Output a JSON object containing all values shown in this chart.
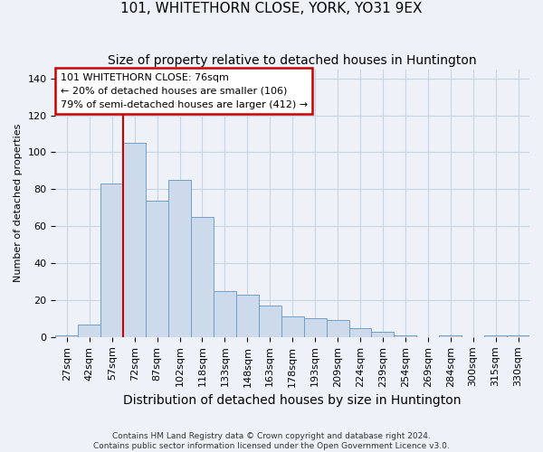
{
  "title": "101, WHITETHORN CLOSE, YORK, YO31 9EX",
  "subtitle": "Size of property relative to detached houses in Huntington",
  "xlabel": "Distribution of detached houses by size in Huntington",
  "ylabel": "Number of detached properties",
  "footnote1": "Contains HM Land Registry data © Crown copyright and database right 2024.",
  "footnote2": "Contains public sector information licensed under the Open Government Licence v3.0.",
  "categories": [
    "27sqm",
    "42sqm",
    "57sqm",
    "72sqm",
    "87sqm",
    "102sqm",
    "118sqm",
    "133sqm",
    "148sqm",
    "163sqm",
    "178sqm",
    "193sqm",
    "209sqm",
    "224sqm",
    "239sqm",
    "254sqm",
    "269sqm",
    "284sqm",
    "300sqm",
    "315sqm",
    "330sqm"
  ],
  "values": [
    1,
    7,
    83,
    105,
    74,
    85,
    65,
    25,
    23,
    17,
    11,
    10,
    9,
    5,
    3,
    1,
    0,
    1,
    0,
    1,
    1
  ],
  "bar_color": "#ccdaeb",
  "bar_edge_color": "#6fa0c8",
  "grid_color": "#c8d4e4",
  "background_color": "#eef2f8",
  "vline_color": "#cc0000",
  "vline_x_index": 3,
  "annotation_text": "101 WHITETHORN CLOSE: 76sqm\n← 20% of detached houses are smaller (106)\n79% of semi-detached houses are larger (412) →",
  "annotation_box_facecolor": "white",
  "annotation_box_edgecolor": "#cc0000",
  "ylim": [
    0,
    145
  ],
  "yticks": [
    0,
    20,
    40,
    60,
    80,
    100,
    120,
    140
  ],
  "title_fontsize": 11,
  "subtitle_fontsize": 10,
  "xlabel_fontsize": 10,
  "ylabel_fontsize": 8,
  "tick_fontsize": 8,
  "annot_fontsize": 8,
  "footnote_fontsize": 6.5
}
